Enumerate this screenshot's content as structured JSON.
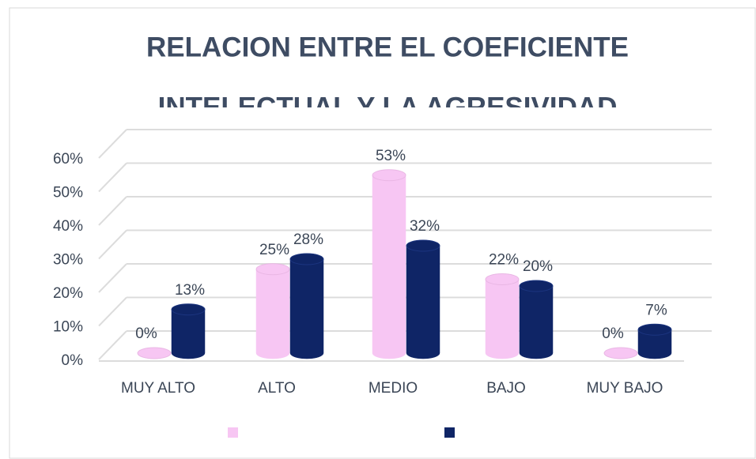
{
  "chart_data": {
    "type": "bar3d",
    "title": [
      "RELACION ENTRE EL COEFICIENTE",
      "INTELECTUAL Y LA AGRESIVIDAD"
    ],
    "categories": [
      "MUY ALTO",
      "ALTO",
      "MEDIO",
      "BAJO",
      "MUY BAJO"
    ],
    "series": [
      {
        "color": "#f7c6f3",
        "values": [
          0,
          25,
          53,
          22,
          0
        ],
        "value_labels": [
          "0%",
          "25%",
          "53%",
          "22%",
          "0%"
        ]
      },
      {
        "color": "#0f2566",
        "values": [
          13,
          28,
          32,
          20,
          7
        ],
        "value_labels": [
          "13%",
          "28%",
          "32%",
          "20%",
          "7%"
        ]
      }
    ],
    "ylim": [
      0,
      60
    ],
    "yticks": [
      {
        "value": 0,
        "label": "0%"
      },
      {
        "value": 10,
        "label": "10%"
      },
      {
        "value": 20,
        "label": "20%"
      },
      {
        "value": 30,
        "label": "30%"
      },
      {
        "value": 40,
        "label": "40%"
      },
      {
        "value": 50,
        "label": "50%"
      },
      {
        "value": 60,
        "label": "60%"
      }
    ],
    "grid": true
  }
}
